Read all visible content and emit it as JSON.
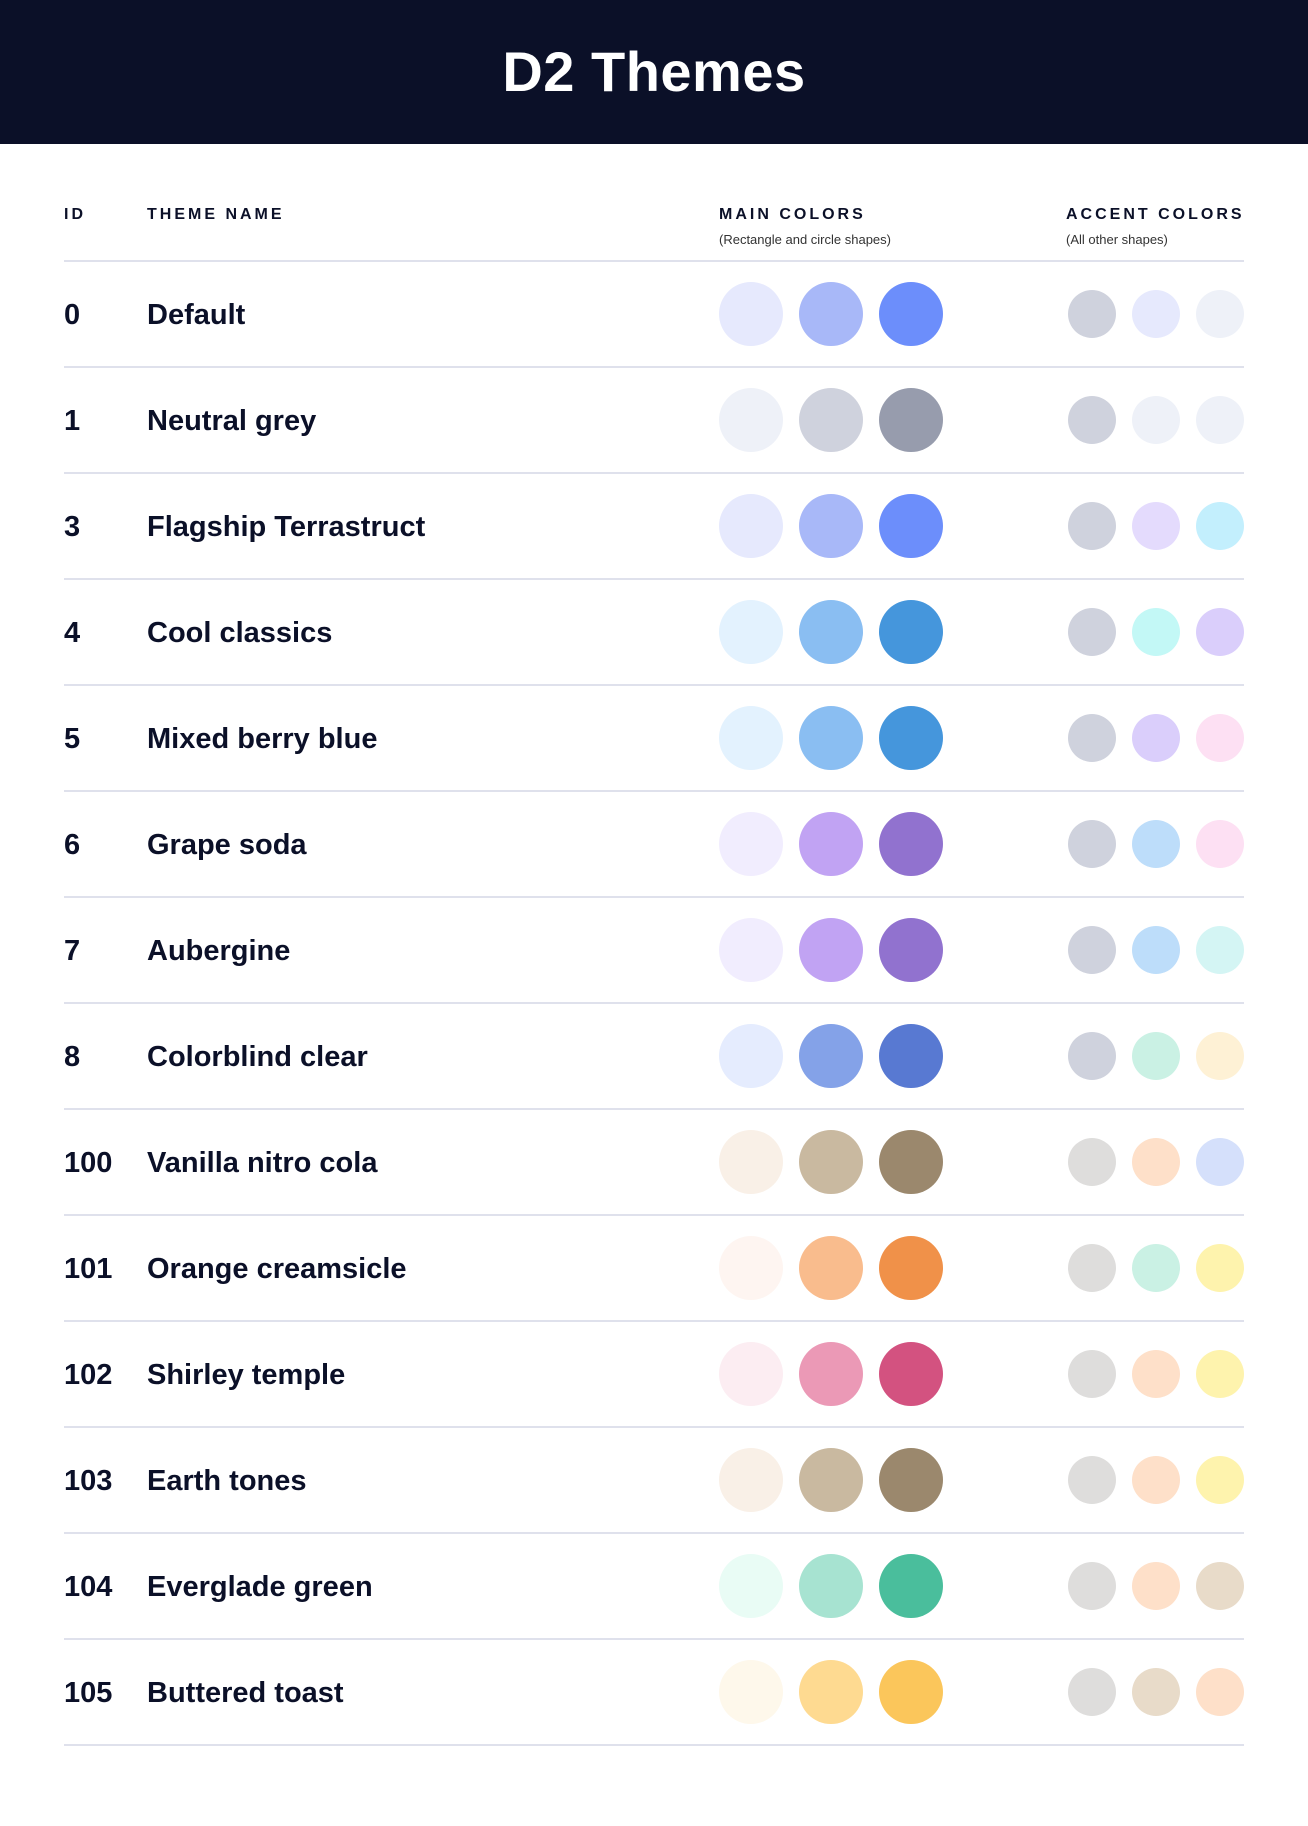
{
  "title": "D2 Themes",
  "columns": {
    "id": "ID",
    "name": "THEME NAME",
    "main": "MAIN COLORS",
    "main_sub": "(Rectangle and circle shapes)",
    "accent": "ACCENT COLORS",
    "accent_sub": "(All other shapes)"
  },
  "themes": [
    {
      "id": "0",
      "name": "Default",
      "main": [
        "#E6E9FD",
        "#A8B8F8",
        "#6C8EFB"
      ],
      "accent": [
        "#CFD2DD",
        "#E6E9FD",
        "#EEF1F8"
      ]
    },
    {
      "id": "1",
      "name": "Neutral grey",
      "main": [
        "#EEF1F8",
        "#CFD2DD",
        "#979CAD"
      ],
      "accent": [
        "#CFD2DD",
        "#EEF1F8",
        "#EEF1F8"
      ]
    },
    {
      "id": "3",
      "name": "Flagship Terrastruct",
      "main": [
        "#E6E9FD",
        "#A8B8F8",
        "#6C8EFB"
      ],
      "accent": [
        "#CFD2DD",
        "#E4DBFD",
        "#C3EFFD"
      ]
    },
    {
      "id": "4",
      "name": "Cool classics",
      "main": [
        "#E3F2FE",
        "#8ABEF2",
        "#4596DC"
      ],
      "accent": [
        "#CFD2DD",
        "#C3F8F6",
        "#DACEFB"
      ]
    },
    {
      "id": "5",
      "name": "Mixed berry blue",
      "main": [
        "#E3F2FE",
        "#8ABEF2",
        "#4596DC"
      ],
      "accent": [
        "#CFD2DD",
        "#DACEFB",
        "#FDE0F3"
      ]
    },
    {
      "id": "6",
      "name": "Grape soda",
      "main": [
        "#F1EDFE",
        "#C1A3F3",
        "#9172CF"
      ],
      "accent": [
        "#CFD2DD",
        "#BDDDFA",
        "#FDE0F3"
      ]
    },
    {
      "id": "7",
      "name": "Aubergine",
      "main": [
        "#F1EDFE",
        "#C1A3F3",
        "#9172CF"
      ],
      "accent": [
        "#CFD2DD",
        "#BDDDFA",
        "#D4F5F4"
      ]
    },
    {
      "id": "8",
      "name": "Colorblind clear",
      "main": [
        "#E5ECFE",
        "#84A2E8",
        "#5879D2"
      ],
      "accent": [
        "#CFD2DD",
        "#CAF1E4",
        "#FEF1D5"
      ]
    },
    {
      "id": "100",
      "name": "Vanilla nitro cola",
      "main": [
        "#F9F0E7",
        "#C9B9A0",
        "#9B886D"
      ],
      "accent": [
        "#DEDDDC",
        "#FEE0C9",
        "#D5E0FB"
      ]
    },
    {
      "id": "101",
      "name": "Orange creamsicle",
      "main": [
        "#FEF5F1",
        "#F9BC8D",
        "#F09149"
      ],
      "accent": [
        "#DEDDDC",
        "#CAF1E4",
        "#FEF3AD"
      ]
    },
    {
      "id": "102",
      "name": "Shirley temple",
      "main": [
        "#FCEDF2",
        "#EB99B6",
        "#D35280"
      ],
      "accent": [
        "#DEDDDC",
        "#FEE0C9",
        "#FEF3AD"
      ]
    },
    {
      "id": "103",
      "name": "Earth tones",
      "main": [
        "#F9F0E7",
        "#C9B9A0",
        "#9B886D"
      ],
      "accent": [
        "#DEDDDC",
        "#FEE0C9",
        "#FEF3AD"
      ]
    },
    {
      "id": "104",
      "name": "Everglade green",
      "main": [
        "#E9FCF5",
        "#A7E3D1",
        "#4ABE9C"
      ],
      "accent": [
        "#DEDDDC",
        "#FEE0C9",
        "#E8DBC9"
      ]
    },
    {
      "id": "105",
      "name": "Buttered toast",
      "main": [
        "#FEF8EB",
        "#FEDA91",
        "#FBC65B"
      ],
      "accent": [
        "#DEDDDC",
        "#E8DBC9",
        "#FEE0C9"
      ]
    }
  ]
}
